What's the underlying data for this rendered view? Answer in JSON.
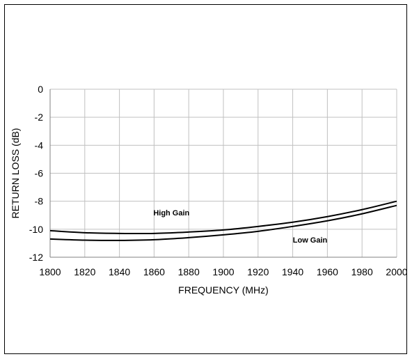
{
  "chart_data": {
    "type": "line",
    "title": "",
    "xlabel": "FREQUENCY (MHz)",
    "ylabel": "RETURN LOSS (dB)",
    "xlim": [
      1800,
      2000
    ],
    "ylim": [
      -12,
      0
    ],
    "xticks": [
      1800,
      1820,
      1840,
      1860,
      1880,
      1900,
      1920,
      1940,
      1960,
      1980,
      2000
    ],
    "yticks": [
      0,
      -2,
      -4,
      -6,
      -8,
      -10,
      -12
    ],
    "grid": true,
    "legend": "none",
    "colors": {
      "line": "#000000",
      "grid": "#c0c0c0"
    },
    "series": [
      {
        "name": "High Gain",
        "x": [
          1800,
          1820,
          1840,
          1860,
          1880,
          1900,
          1920,
          1940,
          1960,
          1980,
          2000
        ],
        "y": [
          -10.1,
          -10.25,
          -10.3,
          -10.3,
          -10.2,
          -10.05,
          -9.8,
          -9.5,
          -9.1,
          -8.6,
          -8.0
        ]
      },
      {
        "name": "Low Gain",
        "x": [
          1800,
          1820,
          1840,
          1860,
          1880,
          1900,
          1920,
          1940,
          1960,
          1980,
          2000
        ],
        "y": [
          -10.7,
          -10.78,
          -10.8,
          -10.75,
          -10.6,
          -10.4,
          -10.15,
          -9.8,
          -9.4,
          -8.9,
          -8.3
        ]
      }
    ],
    "annotations": [
      {
        "text": "High Gain",
        "x": 1870,
        "y": -9.0
      },
      {
        "text": "Low Gain",
        "x": 1950,
        "y": -10.95
      }
    ]
  }
}
